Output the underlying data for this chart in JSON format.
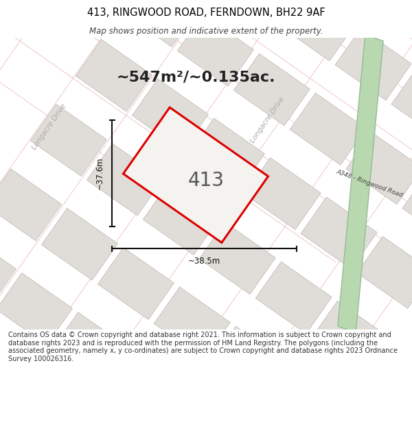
{
  "title_line1": "413, RINGWOOD ROAD, FERNDOWN, BH22 9AF",
  "title_line2": "Map shows position and indicative extent of the property.",
  "area_text": "~547m²/~0.135ac.",
  "property_number": "413",
  "dim_vertical": "~37.6m",
  "dim_horizontal": "~38.5m",
  "road_label": "A348 - Ringwood Road",
  "longacre_drive_label1": "Longacre Drive",
  "longacre_drive_label2": "Longacre Drive",
  "footer_text": "Contains OS data © Crown copyright and database right 2021. This information is subject to Crown copyright and database rights 2023 and is reproduced with the permission of HM Land Registry. The polygons (including the associated geometry, namely x, y co-ordinates) are subject to Crown copyright and database rights 2023 Ordnance Survey 100026316.",
  "map_bg": "#f5f3f0",
  "road_green_color": "#b8d8b0",
  "road_green_edge": "#98b898",
  "block_color": "#e0ddd8",
  "block_edge": "#c8c5c0",
  "property_fill": "#f5f3f0",
  "property_edge": "#dd0000",
  "dim_line_color": "#111111",
  "text_color": "#222222",
  "grid_line_color": "#f0c8c8",
  "longacre_color": "#aaaaaa",
  "road_text_color": "#444444"
}
